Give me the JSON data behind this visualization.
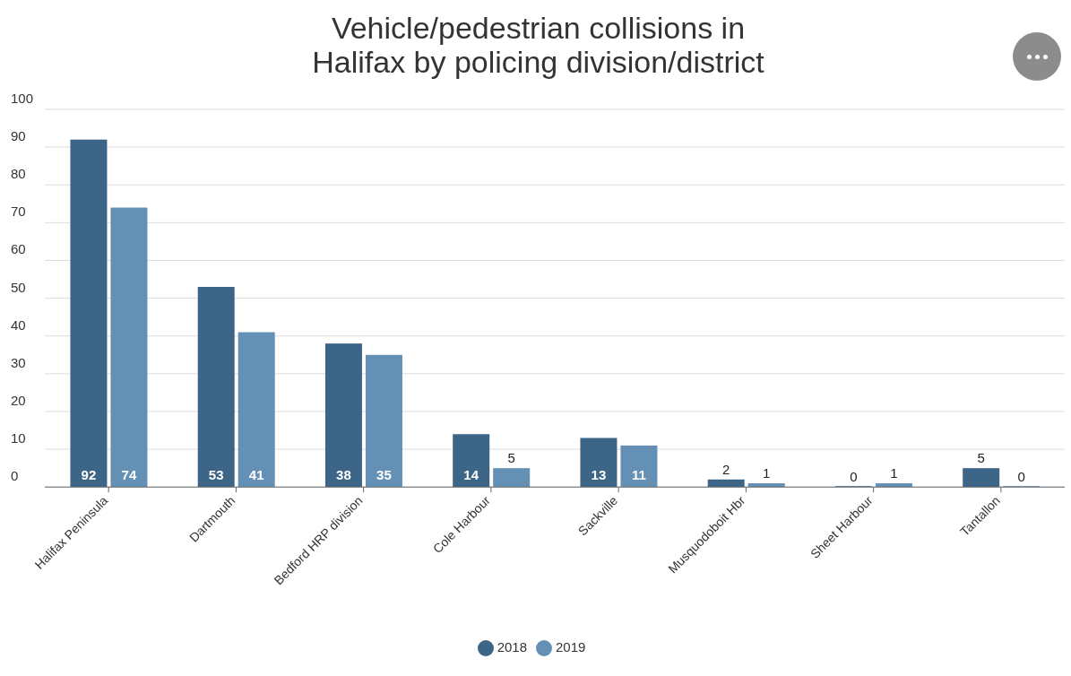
{
  "chart_data": {
    "type": "bar",
    "title": "Vehicle/pedestrian collisions in\nHalifax by policing division/district",
    "categories": [
      "Halifax Peninsula",
      "Dartmouth",
      "Bedford HRP division",
      "Cole Harbour",
      "Sackville",
      "Musquodoboit Hbr",
      "Sheet Harbour",
      "Tantallon"
    ],
    "series": [
      {
        "name": "2018",
        "color": "#3d6587",
        "values": [
          92,
          53,
          38,
          14,
          13,
          2,
          0,
          5
        ]
      },
      {
        "name": "2019",
        "color": "#6590b5",
        "values": [
          74,
          41,
          35,
          5,
          11,
          1,
          1,
          0
        ]
      }
    ],
    "ylim": [
      0,
      100
    ],
    "yticks": [
      0,
      10,
      20,
      30,
      40,
      50,
      60,
      70,
      80,
      90,
      100
    ],
    "grid": "y",
    "legend": "bottom",
    "data_labels": true
  }
}
